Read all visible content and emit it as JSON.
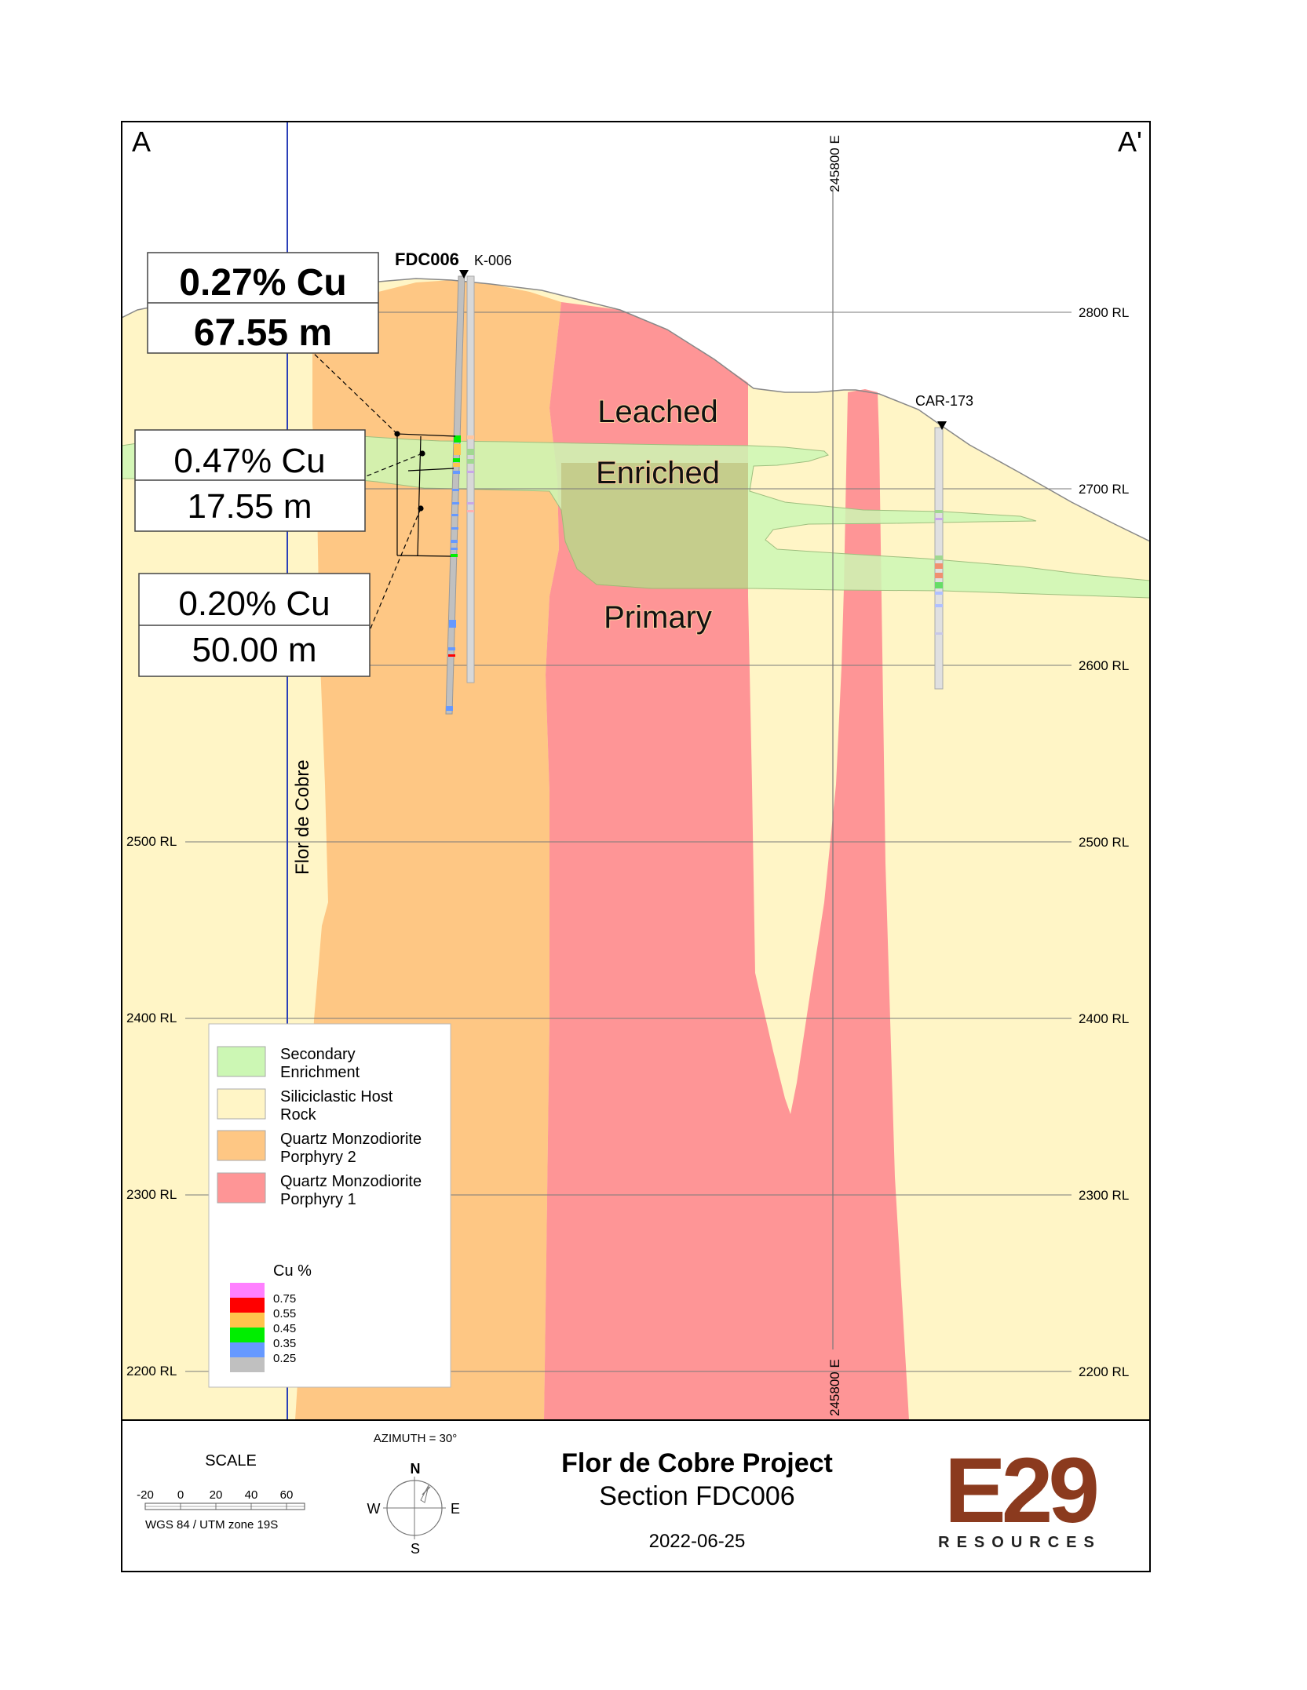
{
  "section_ends": {
    "left": "A",
    "right": "A'"
  },
  "easting_label": "245800 E",
  "rl_labels": [
    "2800 RL",
    "2700 RL",
    "2600 RL",
    "2500 RL",
    "2400 RL",
    "2300 RL",
    "2200 RL"
  ],
  "drillholes": {
    "main": "FDC006",
    "secondary": "K-006",
    "other": "CAR-173"
  },
  "zones": {
    "leached": "Leached",
    "enriched": "Enriched",
    "primary": "Primary"
  },
  "fault_label": "Flor de Cobre",
  "intercepts": [
    {
      "grade": "0.27% Cu",
      "length": "67.55 m"
    },
    {
      "grade": "0.47% Cu",
      "length": "17.55 m"
    },
    {
      "grade": "0.20% Cu",
      "length": "50.00 m"
    }
  ],
  "legend": {
    "items": [
      {
        "line1": "Secondary",
        "line2": "Enrichment",
        "color": "#ccf7b4"
      },
      {
        "line1": "Siliciclastic Host",
        "line2": "Rock",
        "color": "#fff5c6"
      },
      {
        "line1": "Quartz Monzodiorite",
        "line2": "Porphyry 2",
        "color": "#fec784"
      },
      {
        "line1": "Quartz Monzodiorite",
        "line2": "Porphyry 1",
        "color": "#fe9596"
      }
    ],
    "cu_title": "Cu %",
    "cu_ticks": [
      "0.75",
      "0.55",
      "0.45",
      "0.35",
      "0.25"
    ],
    "cu_colors": [
      "#ff80ff",
      "#ff0000",
      "#ffc34d",
      "#00ee00",
      "#6699ff",
      "#c0c0c0"
    ]
  },
  "footer": {
    "scale_title": "SCALE",
    "scale_ticks": [
      "-20",
      "0",
      "20",
      "40",
      "60"
    ],
    "datum": "WGS 84 / UTM zone 19S",
    "azimuth": "AZIMUTH = 30°",
    "compass": {
      "n": "N",
      "s": "S",
      "e": "E",
      "w": "W"
    },
    "project_title": "Flor de Cobre Project",
    "section_title": "Section FDC006",
    "date": "2022-06-25",
    "logo_main": "E29",
    "logo_sub": "RESOURCES",
    "logo_color": "#8b3a1e"
  }
}
